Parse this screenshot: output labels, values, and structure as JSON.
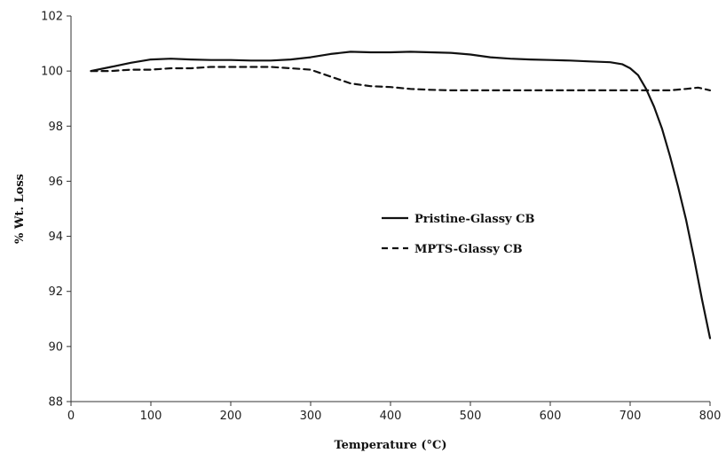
{
  "chart_data": {
    "type": "line",
    "title": "",
    "xlabel": "Temperature (°C)",
    "ylabel": "% Wt. Loss",
    "xlim": [
      0,
      800
    ],
    "ylim": [
      88,
      102
    ],
    "xticks": [
      0,
      100,
      200,
      300,
      400,
      500,
      600,
      700,
      800
    ],
    "yticks": [
      88,
      90,
      92,
      94,
      96,
      98,
      100,
      102
    ],
    "grid": false,
    "legend_position": "center",
    "series": [
      {
        "name": "Pristine-Glassy CB",
        "style": "solid",
        "color": "#111111",
        "x": [
          25,
          50,
          75,
          100,
          125,
          150,
          175,
          200,
          225,
          250,
          275,
          300,
          325,
          350,
          375,
          400,
          425,
          450,
          475,
          500,
          525,
          550,
          575,
          600,
          625,
          650,
          675,
          690,
          700,
          710,
          720,
          730,
          740,
          750,
          760,
          770,
          780,
          790,
          800
        ],
        "y": [
          100.0,
          100.15,
          100.3,
          100.42,
          100.45,
          100.42,
          100.4,
          100.4,
          100.38,
          100.38,
          100.42,
          100.5,
          100.62,
          100.7,
          100.68,
          100.68,
          100.7,
          100.68,
          100.66,
          100.6,
          100.5,
          100.45,
          100.42,
          100.4,
          100.38,
          100.35,
          100.32,
          100.25,
          100.1,
          99.85,
          99.35,
          98.7,
          97.9,
          96.9,
          95.8,
          94.6,
          93.2,
          91.7,
          90.3
        ]
      },
      {
        "name": "MPTS-Glassy CB",
        "style": "dashed",
        "color": "#111111",
        "x": [
          25,
          50,
          75,
          100,
          125,
          150,
          175,
          200,
          225,
          250,
          275,
          300,
          325,
          350,
          375,
          400,
          425,
          450,
          475,
          500,
          550,
          600,
          650,
          700,
          750,
          770,
          785,
          800
        ],
        "y": [
          100.0,
          100.0,
          100.05,
          100.05,
          100.1,
          100.1,
          100.15,
          100.15,
          100.15,
          100.15,
          100.1,
          100.05,
          99.8,
          99.55,
          99.45,
          99.42,
          99.35,
          99.32,
          99.3,
          99.3,
          99.3,
          99.3,
          99.3,
          99.3,
          99.3,
          99.35,
          99.4,
          99.3
        ]
      }
    ]
  }
}
